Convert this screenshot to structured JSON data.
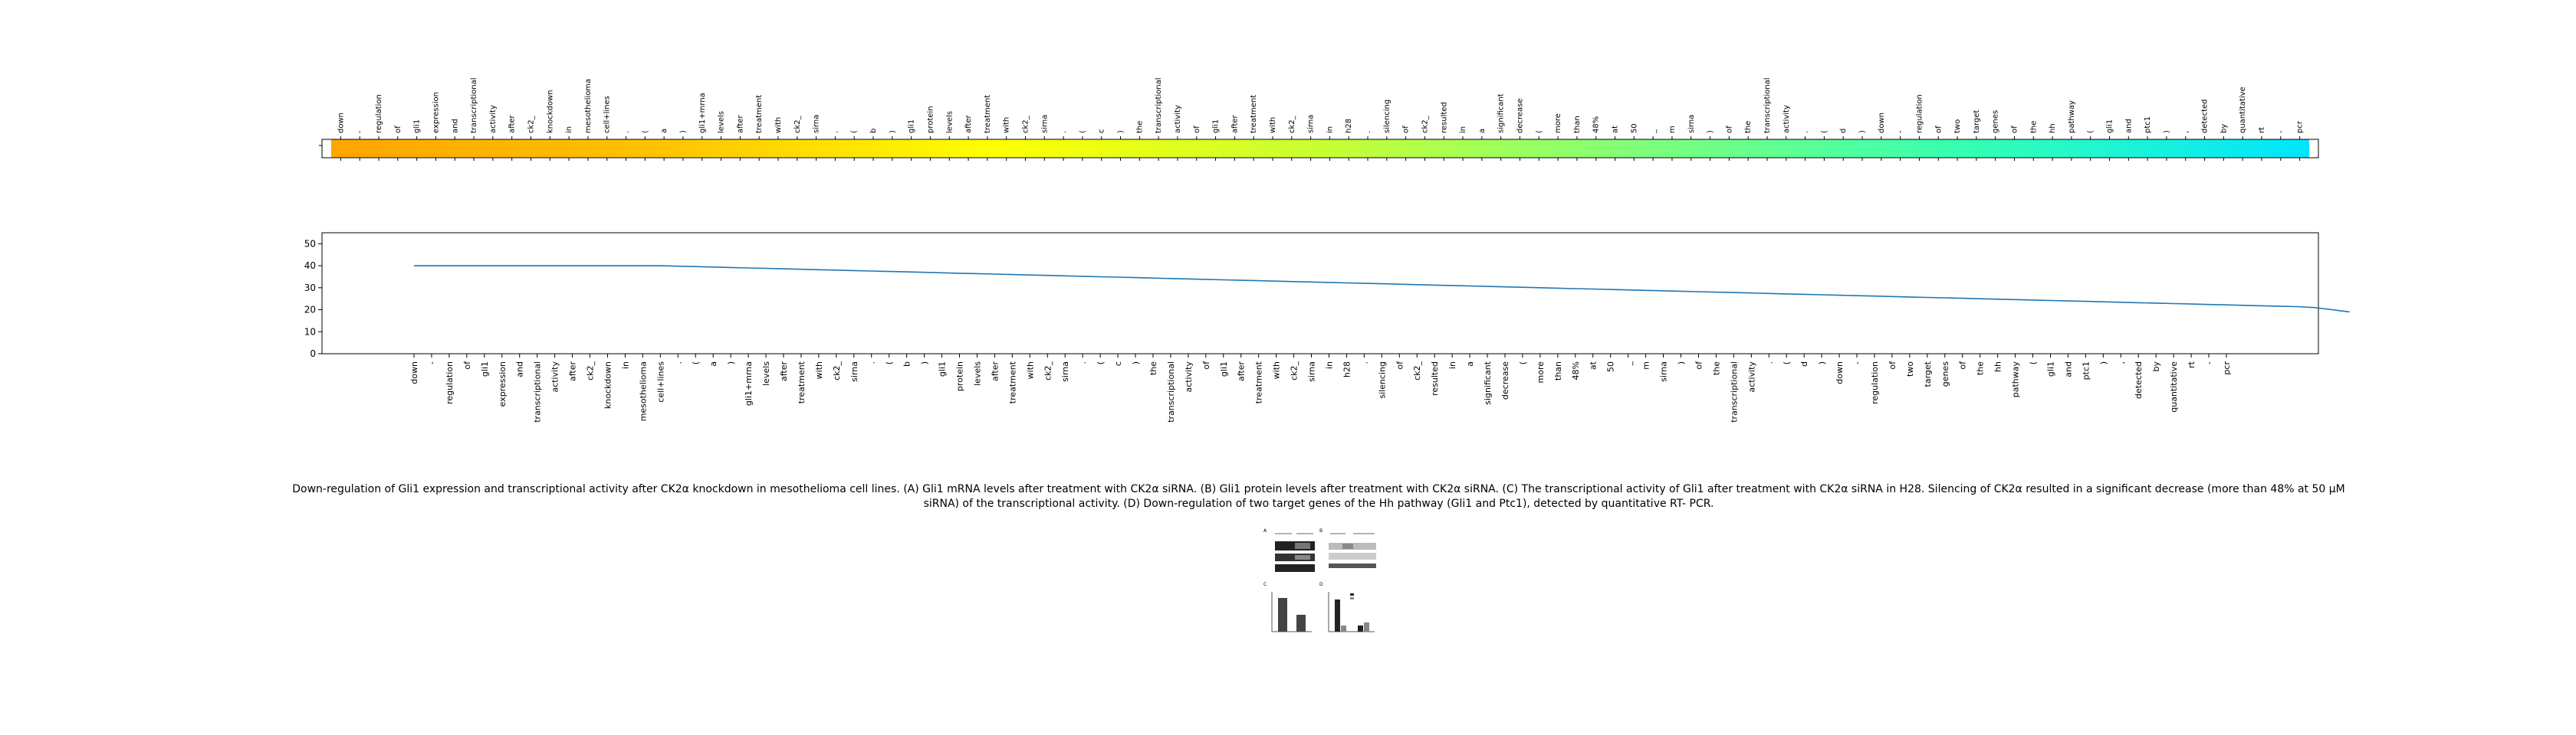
{
  "tokens": [
    "down",
    "-",
    "regulation",
    "of",
    "gli1",
    "expression",
    "and",
    "transcriptional",
    "activity",
    "after",
    "ck2_",
    "knockdown",
    "in",
    "mesothelioma",
    "cell+lines",
    ".",
    "(",
    "a",
    ")",
    "gli1+mrna",
    "levels",
    "after",
    "treatment",
    "with",
    "ck2_",
    "sirna",
    ".",
    "(",
    "b",
    ")",
    "gli1",
    "protein",
    "levels",
    "after",
    "treatment",
    "with",
    "ck2_",
    "sirna",
    ".",
    "(",
    "c",
    ")",
    "the",
    "transcriptional",
    "activity",
    "of",
    "gli1",
    "after",
    "treatment",
    "with",
    "ck2_",
    "sirna",
    "in",
    "h28",
    ".",
    "silencing",
    "of",
    "ck2_",
    "resulted",
    "in",
    "a",
    "significant",
    "decrease",
    "(",
    "more",
    "than",
    "48%",
    "at",
    "50",
    "_",
    "m",
    "sirna",
    ")",
    "of",
    "the",
    "transcriptional",
    "activity",
    ".",
    "(",
    "d",
    ")",
    "down",
    "-",
    "regulation",
    "of",
    "two",
    "target",
    "genes",
    "of",
    "the",
    "hh",
    "pathway",
    "(",
    "gli1",
    "and",
    "ptc1",
    ")",
    ",",
    "detected",
    "by",
    "quantitative",
    "rt",
    "-",
    "pcr"
  ],
  "colorbar": {
    "gradient": [
      "#ffa500",
      "#ffc300",
      "#ffff00",
      "#c8ff32",
      "#7dff7d",
      "#32ffb4",
      "#00e5ff"
    ]
  },
  "chart_data": {
    "type": "line",
    "y": [
      40.0,
      40.0,
      40.0,
      40.0,
      40.0,
      40.0,
      40.0,
      40.0,
      40.0,
      40.0,
      40.0,
      40.0,
      40.0,
      40.0,
      40.0,
      39.8,
      39.6,
      39.4,
      39.2,
      39.0,
      38.8,
      38.6,
      38.4,
      38.2,
      38.0,
      37.8,
      37.6,
      37.4,
      37.2,
      37.0,
      36.8,
      36.6,
      36.4,
      36.2,
      36.0,
      35.8,
      35.6,
      35.4,
      35.2,
      35.0,
      34.8,
      34.6,
      34.4,
      34.2,
      34.0,
      33.8,
      33.6,
      33.4,
      33.2,
      33.0,
      32.8,
      32.6,
      32.4,
      32.2,
      32.0,
      31.8,
      31.6,
      31.4,
      31.2,
      31.0,
      30.8,
      30.6,
      30.4,
      30.2,
      30.0,
      29.8,
      29.6,
      29.4,
      29.2,
      29.0,
      28.8,
      28.6,
      28.4,
      28.2,
      28.0,
      27.8,
      27.6,
      27.4,
      27.2,
      27.0,
      26.8,
      26.6,
      26.4,
      26.2,
      26.0,
      25.8,
      25.6,
      25.4,
      25.2,
      25.0,
      24.8,
      24.6,
      24.4,
      24.2,
      24.0,
      23.8,
      23.6,
      23.4,
      23.2,
      23.0,
      22.8,
      22.6,
      22.4,
      22.2,
      22.0,
      21.8,
      21.6,
      21.4,
      21.0,
      20.0,
      19.0
    ],
    "ylim": [
      0,
      55
    ],
    "yticks": [
      "0",
      "10",
      "20",
      "30",
      "40",
      "50"
    ],
    "line_color": "#1f77b4",
    "grid": false
  },
  "caption": "Down-regulation of Gli1 expression and transcriptional activity after CK2α knockdown in mesothelioma cell lines. (A) Gli1 mRNA levels after treatment with CK2α siRNA. (B) Gli1 protein levels after treatment with CK2α siRNA. (C) The transcriptional activity of Gli1 after treatment with CK2α siRNA in H28. Silencing of CK2α resulted in a significant decrease (more than 48% at 50 μM siRNA) of the transcriptional activity. (D) Down-regulation of two target genes of the Hh pathway (Gli1 and Ptc1), detected by quantitative RT- PCR."
}
